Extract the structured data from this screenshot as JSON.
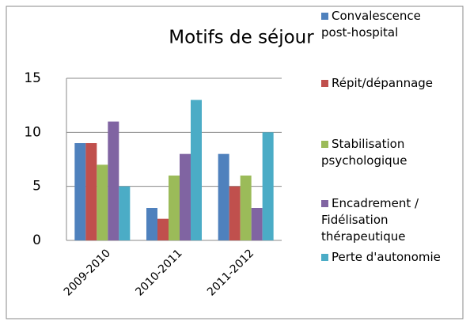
{
  "chart_data": {
    "type": "bar",
    "title": "Motifs de séjour",
    "categories": [
      "2009-2010",
      "2010-2011",
      "2011-2012"
    ],
    "series": [
      {
        "name": "Convalescence post-hospital",
        "color": "#4f81bd",
        "values": [
          9,
          3,
          8
        ]
      },
      {
        "name": "Répit/dépannage",
        "color": "#c0504d",
        "values": [
          9,
          2,
          5
        ]
      },
      {
        "name": "Stabilisation psychologique",
        "color": "#9bbb59",
        "values": [
          7,
          6,
          6
        ]
      },
      {
        "name": "Encadrement / Fidélisation thérapeutique",
        "color": "#8064a2",
        "values": [
          11,
          8,
          3
        ]
      },
      {
        "name": "Perte d'autonomie",
        "color": "#4bacc6",
        "values": [
          5,
          13,
          10
        ]
      }
    ],
    "ylim": [
      0,
      15
    ],
    "yticks": [
      0,
      5,
      10,
      15
    ],
    "grid": true,
    "legend": "right"
  }
}
